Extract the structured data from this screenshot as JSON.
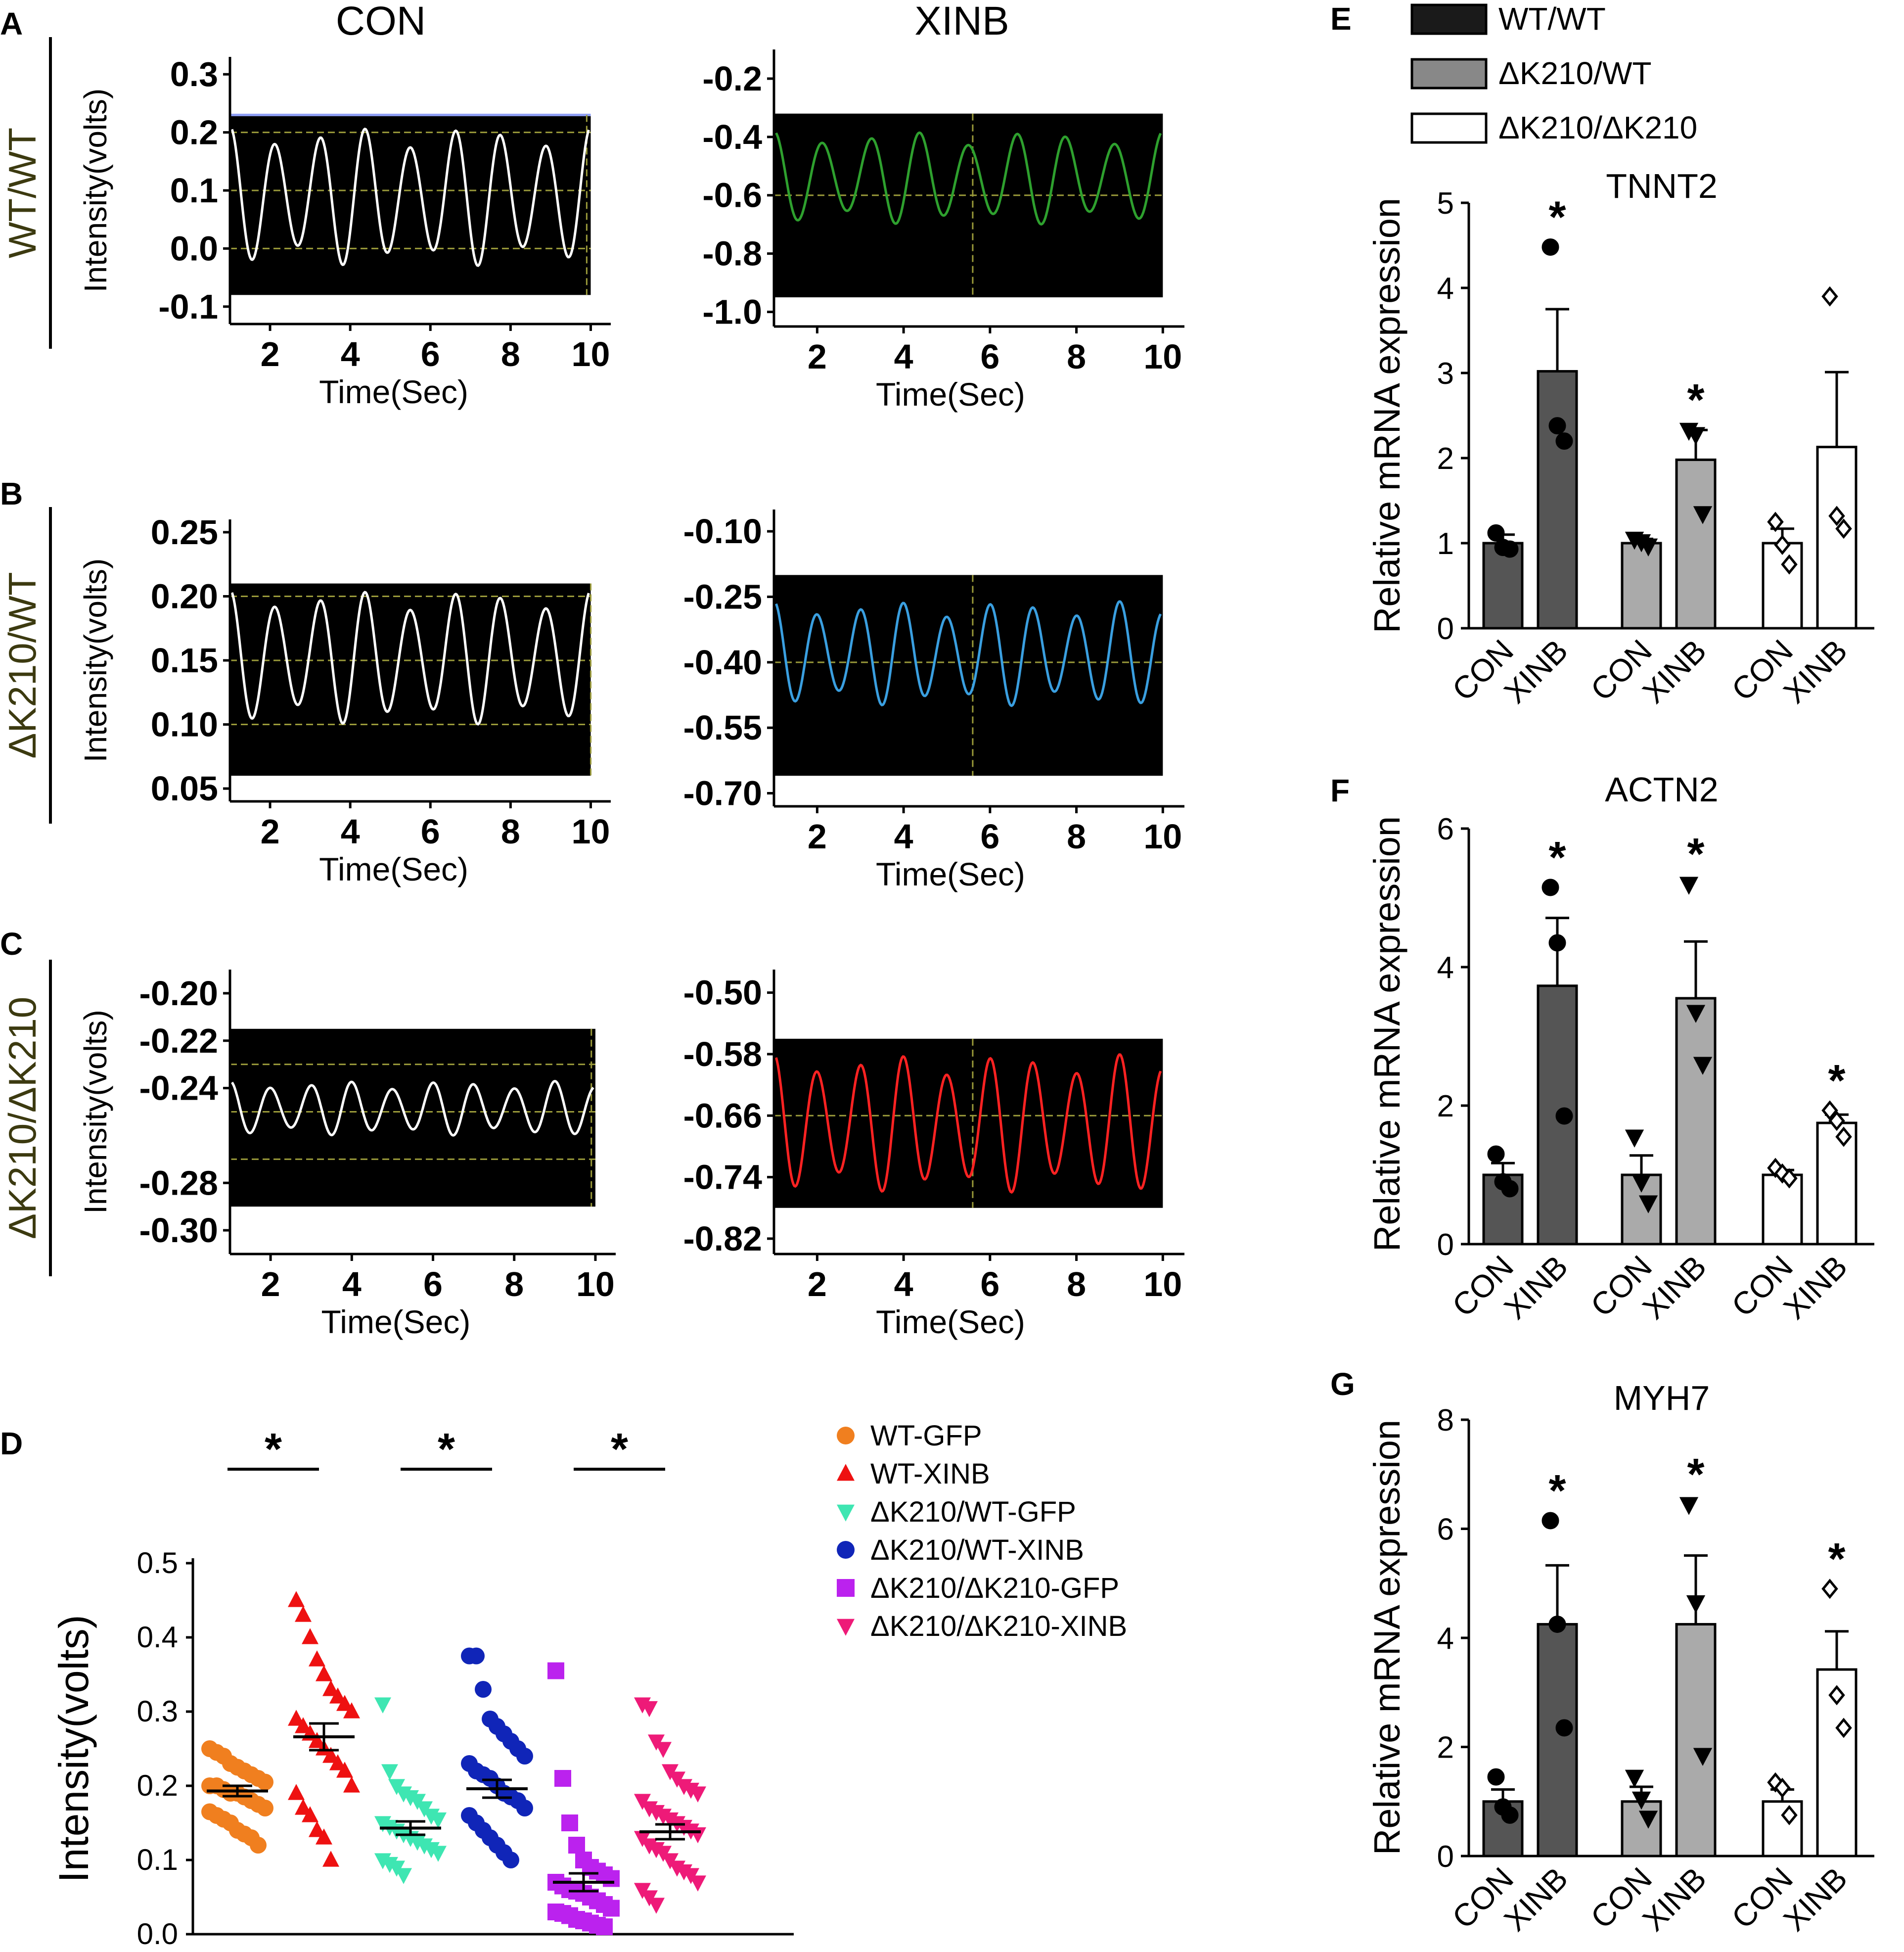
{
  "figure": {
    "panel_letters": [
      "A",
      "B",
      "C",
      "D",
      "E",
      "F",
      "G"
    ],
    "column_titles": [
      "CON",
      "XINB"
    ],
    "row_labels": [
      "WT/WT",
      "ΔK210/WT",
      "ΔK210/ΔK210"
    ],
    "trace_ylabel": "Intensity(volts)",
    "trace_xlabel": "Time(Sec)",
    "scatter_ylabel": "Intensity(volts)",
    "bar_ylabel": "Relative mRNA expression",
    "star": "*"
  },
  "legend_E": [
    {
      "label": "WT/WT",
      "color": "#1a1a1a"
    },
    {
      "label": "ΔK210/WT",
      "color": "#888888"
    },
    {
      "label": "ΔK210/ΔK210",
      "color": "#ffffff"
    }
  ],
  "chart_data": [
    {
      "id": "A-CON",
      "type": "line",
      "panel": "A",
      "column": "CON",
      "row": "WT/WT",
      "xlabel": "Time(Sec)",
      "ylabel": "Intensity(volts)",
      "xticks": [
        2,
        4,
        6,
        8,
        10
      ],
      "xlim": [
        1,
        10.5
      ],
      "yticks": [
        0.3,
        0.2,
        0.1,
        0.0,
        -0.1
      ],
      "ytick_labels": [
        "0.3",
        "0.2",
        "0.1",
        "0.0",
        "-0.1"
      ],
      "ylim": [
        -0.13,
        0.33
      ],
      "plot_y_range": [
        -0.08,
        0.23
      ],
      "plot_x_range": [
        1,
        10
      ],
      "trace_color": "#ffffff",
      "peaks": 8,
      "wave_min": -0.03,
      "wave_max": 0.21,
      "gridlines": [
        0.2,
        0.1,
        0.0
      ],
      "top_line_color": "#8f9ff5",
      "cursor_x": 9.9
    },
    {
      "id": "A-XINB",
      "type": "line",
      "panel": "A",
      "column": "XINB",
      "row": "WT/WT",
      "xlabel": "Time(Sec)",
      "ylabel": "",
      "xticks": [
        2,
        4,
        6,
        8,
        10
      ],
      "xlim": [
        1,
        10.5
      ],
      "yticks": [
        -0.2,
        -0.4,
        -0.6,
        -0.8,
        -1.0
      ],
      "ytick_labels": [
        "-0.2",
        "-0.4",
        "-0.6",
        "-0.8",
        "-1.0"
      ],
      "ylim": [
        -1.05,
        -0.1
      ],
      "plot_y_range": [
        -0.95,
        -0.32
      ],
      "plot_x_range": [
        1,
        10
      ],
      "trace_color": "#2ea02e",
      "peaks": 8,
      "wave_min": -0.7,
      "wave_max": -0.38,
      "gridlines": [
        -0.6
      ],
      "top_line_color": "",
      "cursor_x": 5.6
    },
    {
      "id": "B-CON",
      "type": "line",
      "panel": "B",
      "column": "CON",
      "row": "ΔK210/WT",
      "xlabel": "Time(Sec)",
      "ylabel": "Intensity(volts)",
      "xticks": [
        2,
        4,
        6,
        8,
        10
      ],
      "xlim": [
        1,
        10.5
      ],
      "yticks": [
        0.25,
        0.2,
        0.15,
        0.1,
        0.05
      ],
      "ytick_labels": [
        "0.25",
        "0.20",
        "0.15",
        "0.10",
        "0.05"
      ],
      "ylim": [
        0.04,
        0.26
      ],
      "plot_y_range": [
        0.06,
        0.21
      ],
      "plot_x_range": [
        1,
        10
      ],
      "trace_color": "#ffffff",
      "peaks": 8,
      "wave_min": 0.1,
      "wave_max": 0.205,
      "gridlines": [
        0.2,
        0.15,
        0.1
      ],
      "top_line_color": "",
      "cursor_x": 10
    },
    {
      "id": "B-XINB",
      "type": "line",
      "panel": "B",
      "column": "XINB",
      "row": "ΔK210/WT",
      "xlabel": "Time(Sec)",
      "ylabel": "",
      "xticks": [
        2,
        4,
        6,
        8,
        10
      ],
      "xlim": [
        1,
        10.5
      ],
      "yticks": [
        -0.1,
        -0.25,
        -0.4,
        -0.55,
        -0.7
      ],
      "ytick_labels": [
        "-0.10",
        "-0.25",
        "-0.40",
        "-0.55",
        "-0.70"
      ],
      "ylim": [
        -0.73,
        -0.05
      ],
      "plot_y_range": [
        -0.66,
        -0.2
      ],
      "plot_x_range": [
        1,
        10
      ],
      "trace_color": "#3a9fe0",
      "peaks": 9,
      "wave_min": -0.5,
      "wave_max": -0.26,
      "gridlines": [
        -0.4
      ],
      "top_line_color": "",
      "cursor_x": 5.6
    },
    {
      "id": "C-CON",
      "type": "line",
      "panel": "C",
      "column": "CON",
      "row": "ΔK210/ΔK210",
      "xlabel": "Time(Sec)",
      "ylabel": "Intensity(volts)",
      "xticks": [
        2,
        4,
        6,
        8,
        10
      ],
      "xlim": [
        1,
        10.5
      ],
      "yticks": [
        -0.2,
        -0.22,
        -0.24,
        -0.28,
        -0.3
      ],
      "ytick_labels": [
        "-0.20",
        "-0.22",
        "-0.24",
        "-0.28",
        "-0.30"
      ],
      "ylim": [
        -0.31,
        -0.19
      ],
      "plot_y_range": [
        -0.29,
        -0.215
      ],
      "plot_x_range": [
        1,
        10
      ],
      "trace_color": "#ffffff",
      "peaks": 9,
      "wave_min": -0.26,
      "wave_max": -0.237,
      "gridlines": [
        -0.23,
        -0.25,
        -0.27
      ],
      "top_line_color": "",
      "cursor_x": 9.9
    },
    {
      "id": "C-XINB",
      "type": "line",
      "panel": "C",
      "column": "XINB",
      "row": "ΔK210/ΔK210",
      "xlabel": "Time(Sec)",
      "ylabel": "",
      "xticks": [
        2,
        4,
        6,
        8,
        10
      ],
      "xlim": [
        1,
        10.5
      ],
      "yticks": [
        -0.5,
        -0.58,
        -0.66,
        -0.74,
        -0.82
      ],
      "ytick_labels": [
        "-0.50",
        "-0.58",
        "-0.66",
        "-0.74",
        "-0.82"
      ],
      "ylim": [
        -0.84,
        -0.47
      ],
      "plot_y_range": [
        -0.78,
        -0.56
      ],
      "plot_x_range": [
        1,
        10
      ],
      "trace_color": "#ff2222",
      "peaks": 9,
      "wave_min": -0.76,
      "wave_max": -0.58,
      "gridlines": [
        -0.66
      ],
      "top_line_color": "",
      "cursor_x": 5.6
    },
    {
      "id": "D",
      "type": "scatter",
      "panel": "D",
      "ylabel": "Intensity(volts)",
      "ylim": [
        0,
        0.5
      ],
      "yticks": [
        0.0,
        0.1,
        0.2,
        0.3,
        0.4,
        0.5
      ],
      "ytick_labels": [
        "0.0",
        "0.1",
        "0.2",
        "0.3",
        "0.4",
        "0.5"
      ],
      "significance": [
        [
          0,
          1
        ],
        [
          2,
          3
        ],
        [
          4,
          5
        ]
      ],
      "groups": [
        {
          "name": "WT-GFP",
          "color": "#f07f1f",
          "marker": "circle",
          "mean": 0.193,
          "sem": 0.007,
          "values": [
            0.25,
            0.245,
            0.24,
            0.23,
            0.225,
            0.22,
            0.215,
            0.21,
            0.205,
            0.2,
            0.2,
            0.195,
            0.19,
            0.19,
            0.185,
            0.18,
            0.175,
            0.17,
            0.165,
            0.16,
            0.155,
            0.15,
            0.14,
            0.135,
            0.13,
            0.12
          ]
        },
        {
          "name": "WT-XINB",
          "color": "#ee1111",
          "marker": "triangle-up",
          "mean": 0.266,
          "sem": 0.018,
          "values": [
            0.45,
            0.43,
            0.4,
            0.37,
            0.35,
            0.33,
            0.32,
            0.31,
            0.3,
            0.29,
            0.28,
            0.27,
            0.26,
            0.25,
            0.24,
            0.23,
            0.22,
            0.2,
            0.19,
            0.17,
            0.16,
            0.14,
            0.13,
            0.1
          ]
        },
        {
          "name": "ΔK210/WT-GFP",
          "color": "#3ee6b2",
          "marker": "triangle-down",
          "mean": 0.143,
          "sem": 0.009,
          "values": [
            0.31,
            0.22,
            0.2,
            0.19,
            0.185,
            0.18,
            0.17,
            0.16,
            0.155,
            0.15,
            0.145,
            0.14,
            0.135,
            0.13,
            0.125,
            0.12,
            0.115,
            0.11,
            0.1,
            0.095,
            0.09,
            0.08
          ]
        },
        {
          "name": "ΔK210/WT-XINB",
          "color": "#1025b8",
          "marker": "circle",
          "mean": 0.196,
          "sem": 0.012,
          "values": [
            0.375,
            0.375,
            0.33,
            0.29,
            0.28,
            0.27,
            0.26,
            0.25,
            0.24,
            0.23,
            0.22,
            0.215,
            0.21,
            0.2,
            0.19,
            0.185,
            0.18,
            0.17,
            0.16,
            0.15,
            0.14,
            0.13,
            0.12,
            0.11,
            0.1
          ]
        },
        {
          "name": "ΔK210/ΔK210-GFP",
          "color": "#bb22ee",
          "marker": "square",
          "mean": 0.07,
          "sem": 0.012,
          "values": [
            0.355,
            0.21,
            0.15,
            0.12,
            0.1,
            0.09,
            0.085,
            0.08,
            0.075,
            0.07,
            0.065,
            0.06,
            0.058,
            0.055,
            0.05,
            0.045,
            0.04,
            0.035,
            0.03,
            0.028,
            0.025,
            0.02,
            0.018,
            0.015,
            0.012,
            0.01
          ]
        },
        {
          "name": "ΔK210/ΔK210-XINB",
          "color": "#ee1a78",
          "marker": "triangle-down",
          "mean": 0.138,
          "sem": 0.01,
          "values": [
            0.31,
            0.305,
            0.26,
            0.25,
            0.22,
            0.21,
            0.2,
            0.195,
            0.19,
            0.18,
            0.17,
            0.165,
            0.16,
            0.155,
            0.15,
            0.145,
            0.14,
            0.135,
            0.13,
            0.12,
            0.115,
            0.11,
            0.1,
            0.09,
            0.085,
            0.08,
            0.07,
            0.06,
            0.05,
            0.04
          ]
        }
      ]
    },
    {
      "id": "E",
      "type": "bar",
      "panel": "E",
      "title": "TNNT2",
      "ylabel": "Relative mRNA expression",
      "ylim": [
        0,
        5
      ],
      "yticks": [
        0,
        1,
        2,
        3,
        4,
        5
      ],
      "ytick_labels": [
        "0",
        "1",
        "2",
        "3",
        "4",
        "5"
      ],
      "categories": [
        "CON",
        "XINB",
        "CON",
        "XINB",
        "CON",
        "XINB"
      ],
      "genotypes": [
        "WT/WT",
        "WT/WT",
        "ΔK210/WT",
        "ΔK210/WT",
        "ΔK210/ΔK210",
        "ΔK210/ΔK210"
      ],
      "values": [
        1.0,
        3.02,
        1.0,
        1.98,
        1.0,
        2.13
      ],
      "errors": [
        0.1,
        0.73,
        0.05,
        0.35,
        0.17,
        0.88
      ],
      "points": [
        [
          1.12,
          0.95,
          0.93
        ],
        [
          4.48,
          2.38,
          2.2
        ],
        [
          1.05,
          1.02,
          0.97
        ],
        [
          2.33,
          2.28,
          1.35
        ],
        [
          1.25,
          0.98,
          0.75
        ],
        [
          3.9,
          1.32,
          1.17
        ]
      ],
      "markers": [
        "circle",
        "circle",
        "triangle-down",
        "triangle-down",
        "diamond",
        "diamond"
      ],
      "fills": [
        "#555555",
        "#555555",
        "#aaaaaa",
        "#aaaaaa",
        "#ffffff",
        "#ffffff"
      ],
      "significant": [
        false,
        true,
        false,
        true,
        false,
        false
      ]
    },
    {
      "id": "F",
      "type": "bar",
      "panel": "F",
      "title": "ACTN2",
      "ylabel": "Relative mRNA expression",
      "ylim": [
        0,
        6
      ],
      "yticks": [
        0,
        2,
        4,
        6
      ],
      "ytick_labels": [
        "0",
        "2",
        "4",
        "6"
      ],
      "categories": [
        "CON",
        "XINB",
        "CON",
        "XINB",
        "CON",
        "XINB"
      ],
      "genotypes": [
        "WT/WT",
        "WT/WT",
        "ΔK210/WT",
        "ΔK210/WT",
        "ΔK210/ΔK210",
        "ΔK210/ΔK210"
      ],
      "values": [
        1.0,
        3.73,
        1.0,
        3.55,
        1.0,
        1.75
      ],
      "errors": [
        0.17,
        0.98,
        0.28,
        0.82,
        0.07,
        0.12
      ],
      "points": [
        [
          1.3,
          0.9,
          0.8
        ],
        [
          5.15,
          4.35,
          1.85
        ],
        [
          1.55,
          0.9,
          0.6
        ],
        [
          5.2,
          3.35,
          2.6
        ],
        [
          1.1,
          1.02,
          0.95
        ],
        [
          1.93,
          1.78,
          1.55
        ]
      ],
      "markers": [
        "circle",
        "circle",
        "triangle-down",
        "triangle-down",
        "diamond",
        "diamond"
      ],
      "fills": [
        "#555555",
        "#555555",
        "#aaaaaa",
        "#aaaaaa",
        "#ffffff",
        "#ffffff"
      ],
      "significant": [
        false,
        true,
        false,
        true,
        false,
        true
      ]
    },
    {
      "id": "G",
      "type": "bar",
      "panel": "G",
      "title": "MYH7",
      "ylabel": "Relative mRNA expression",
      "ylim": [
        0,
        8
      ],
      "yticks": [
        0,
        2,
        4,
        6,
        8
      ],
      "ytick_labels": [
        "0",
        "2",
        "4",
        "6",
        "8"
      ],
      "categories": [
        "CON",
        "XINB",
        "CON",
        "XINB",
        "CON",
        "XINB"
      ],
      "genotypes": [
        "WT/WT",
        "WT/WT",
        "ΔK210/WT",
        "ΔK210/WT",
        "ΔK210/ΔK210",
        "ΔK210/ΔK210"
      ],
      "values": [
        1.0,
        4.25,
        1.0,
        4.25,
        1.0,
        3.42
      ],
      "errors": [
        0.22,
        1.08,
        0.27,
        1.26,
        0.22,
        0.7
      ],
      "points": [
        [
          1.45,
          0.9,
          0.75
        ],
        [
          6.15,
          4.25,
          2.35
        ],
        [
          1.45,
          1.05,
          0.7
        ],
        [
          6.45,
          4.65,
          1.85
        ],
        [
          1.35,
          1.25,
          0.75
        ],
        [
          4.9,
          2.95,
          2.35
        ]
      ],
      "markers": [
        "circle",
        "circle",
        "triangle-down",
        "triangle-down",
        "diamond",
        "diamond"
      ],
      "fills": [
        "#555555",
        "#555555",
        "#aaaaaa",
        "#aaaaaa",
        "#ffffff",
        "#ffffff"
      ],
      "significant": [
        false,
        true,
        false,
        true,
        false,
        true
      ]
    }
  ]
}
